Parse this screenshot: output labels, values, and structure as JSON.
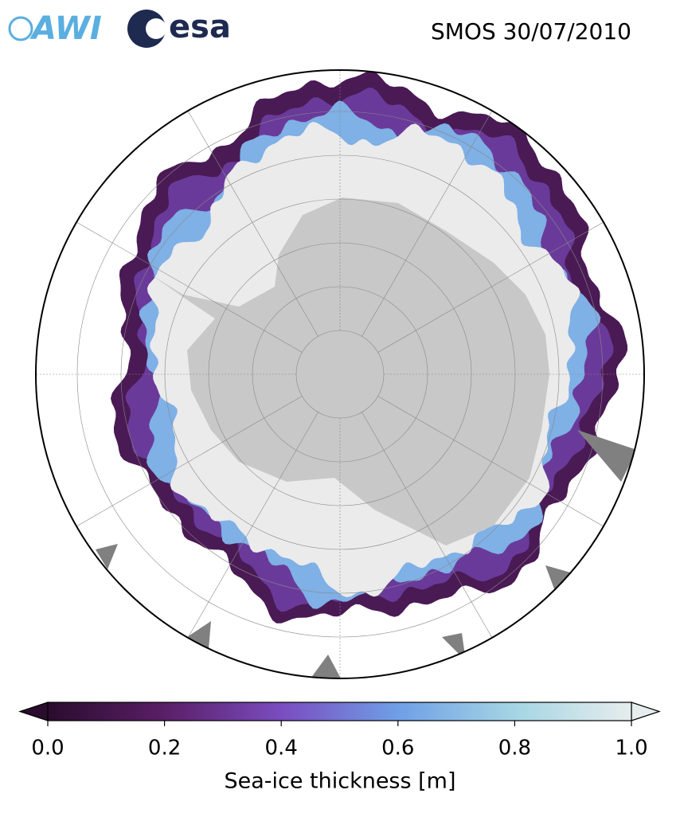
{
  "header": {
    "logos": {
      "awi": "AWI",
      "esa": "esa"
    },
    "title": "SMOS 30/07/2010"
  },
  "colorbar": {
    "label": "Sea-ice thickness [m]",
    "range": [
      0,
      1
    ],
    "ticks": [
      {
        "value": 0,
        "label": "0.0"
      },
      {
        "value": 0.2,
        "label": "0.2"
      },
      {
        "value": 0.4,
        "label": "0.4"
      },
      {
        "value": 0.6,
        "label": "0.6"
      },
      {
        "value": 0.8,
        "label": "0.8"
      },
      {
        "value": 1,
        "label": "1.0"
      }
    ],
    "colors": [
      "#2a0c2e",
      "#5a1f66",
      "#7a4cc0",
      "#6f9fe6",
      "#a5d5e4",
      "#e6eded"
    ]
  }
}
